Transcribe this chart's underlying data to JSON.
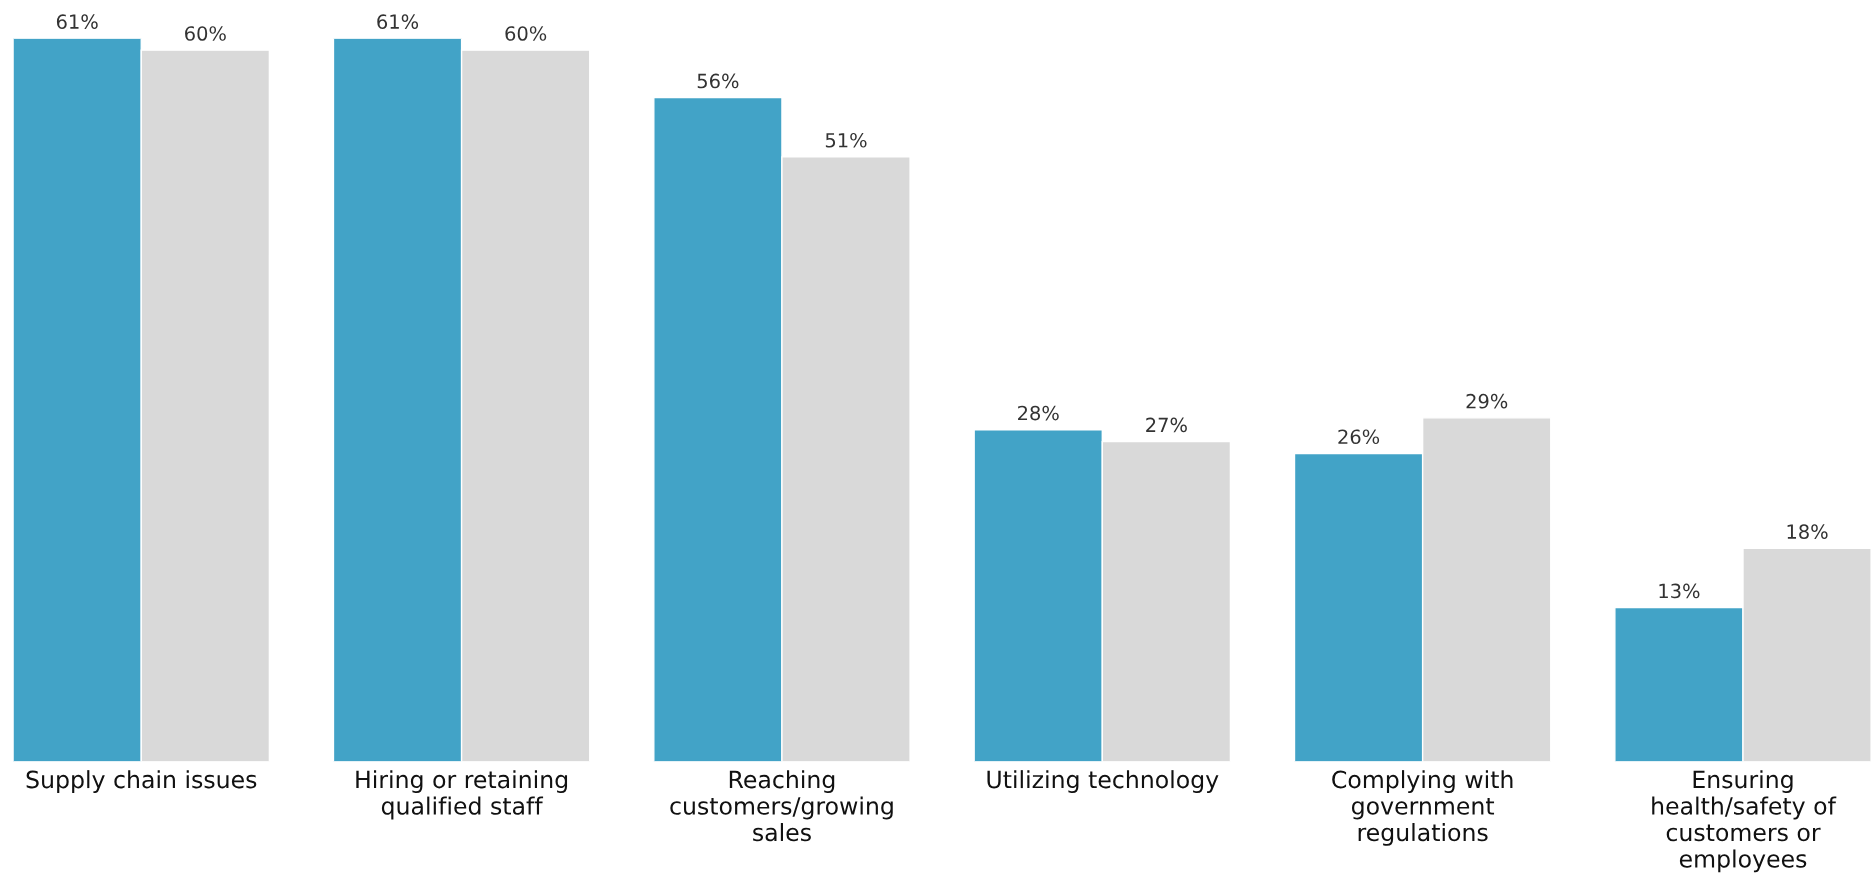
{
  "chart_data": {
    "type": "bar",
    "categories": [
      "Supply chain issues",
      "Hiring or retaining\nqualified staff",
      "Reaching\ncustomers/growing\nsales",
      "Utilizing technology",
      "Complying with\ngovernment\nregulations",
      "Ensuring\nhealth/safety of\ncustomers or\nemployees"
    ],
    "series": [
      {
        "color": "#42a3c7",
        "values": [
          61,
          61,
          56,
          28,
          26,
          13
        ],
        "value_labels": [
          "61%",
          "61%",
          "56%",
          "28%",
          "26%",
          "13%"
        ]
      },
      {
        "color": "#d9d9d9",
        "values": [
          60,
          60,
          51,
          27,
          29,
          18
        ],
        "value_labels": [
          "60%",
          "60%",
          "51%",
          "27%",
          "29%",
          "18%"
        ]
      }
    ],
    "grid": false,
    "legend": false
  }
}
